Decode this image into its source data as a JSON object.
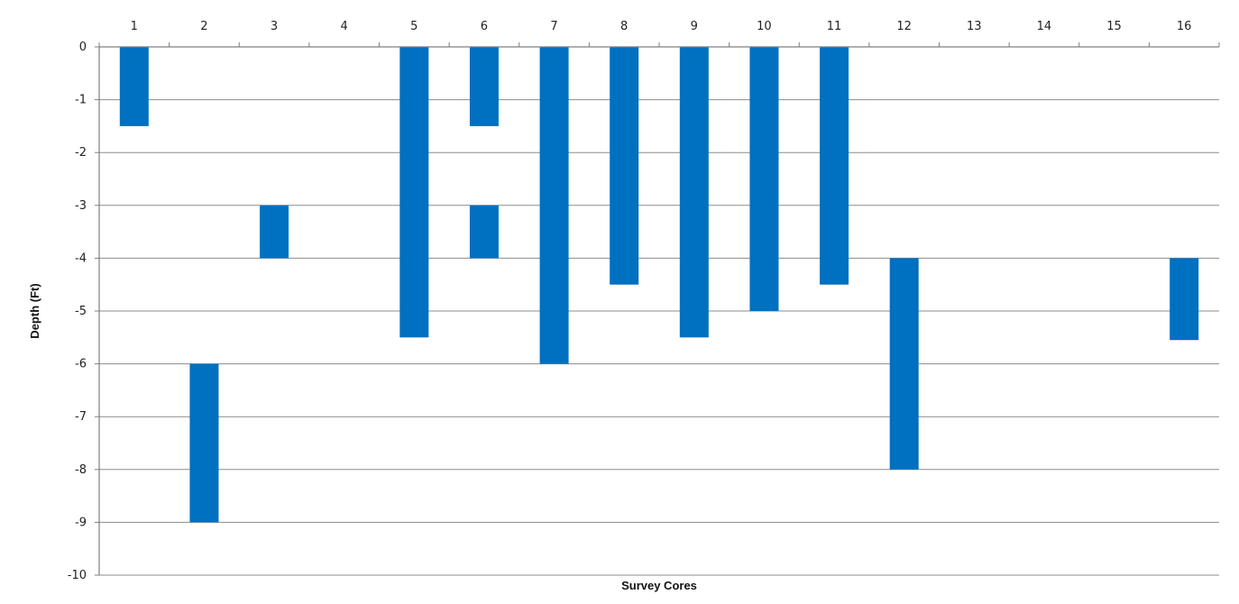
{
  "chart_data": {
    "type": "bar",
    "subtype": "floating-range",
    "title": "",
    "xlabel": "Survey Cores",
    "ylabel": "Depth (Ft)",
    "categories": [
      "1",
      "2",
      "3",
      "4",
      "5",
      "6",
      "7",
      "8",
      "9",
      "10",
      "11",
      "12",
      "13",
      "14",
      "15",
      "16"
    ],
    "x_axis_position": "top",
    "ylim": [
      -10,
      0
    ],
    "y_ticks": [
      "0",
      "-1",
      "-2",
      "-3",
      "-4",
      "-5",
      "-6",
      "-7",
      "-8",
      "-9",
      "-10"
    ],
    "grid": true,
    "legend": "none",
    "bar_color": "#0070C0",
    "series": [
      {
        "ranges": [
          {
            "category": "1",
            "top": 0,
            "bottom": -1.5
          },
          {
            "category": "2",
            "top": -6,
            "bottom": -9
          },
          {
            "category": "3",
            "top": -3,
            "bottom": -4
          },
          {
            "category": "5",
            "top": 0,
            "bottom": -5.5
          },
          {
            "category": "6",
            "top": 0,
            "bottom": -1.5
          },
          {
            "category": "6",
            "top": -3,
            "bottom": -4
          },
          {
            "category": "7",
            "top": 0,
            "bottom": -6
          },
          {
            "category": "8",
            "top": 0,
            "bottom": -4.5
          },
          {
            "category": "9",
            "top": 0,
            "bottom": -5.5
          },
          {
            "category": "10",
            "top": 0,
            "bottom": -5
          },
          {
            "category": "11",
            "top": 0,
            "bottom": -4.5
          },
          {
            "category": "12",
            "top": -4,
            "bottom": -8
          },
          {
            "category": "16",
            "top": -4,
            "bottom": -5.55
          }
        ]
      }
    ]
  }
}
